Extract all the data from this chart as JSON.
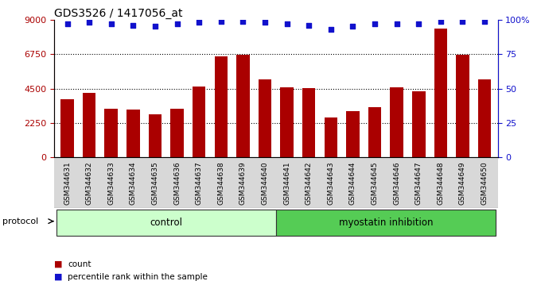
{
  "title": "GDS3526 / 1417056_at",
  "samples": [
    "GSM344631",
    "GSM344632",
    "GSM344633",
    "GSM344634",
    "GSM344635",
    "GSM344636",
    "GSM344637",
    "GSM344638",
    "GSM344639",
    "GSM344640",
    "GSM344641",
    "GSM344642",
    "GSM344643",
    "GSM344644",
    "GSM344645",
    "GSM344646",
    "GSM344647",
    "GSM344648",
    "GSM344649",
    "GSM344650"
  ],
  "counts": [
    3800,
    4200,
    3200,
    3150,
    2800,
    3200,
    4650,
    6600,
    6700,
    5100,
    4600,
    4550,
    2600,
    3000,
    3300,
    4600,
    4300,
    8400,
    6700,
    5100
  ],
  "percentiles": [
    97,
    98,
    97,
    96,
    95,
    97,
    98,
    99,
    99,
    98,
    97,
    96,
    93,
    95,
    97,
    97,
    97,
    99,
    99,
    99
  ],
  "bar_color": "#AA0000",
  "dot_color": "#1111CC",
  "ylim_left": [
    0,
    9000
  ],
  "ylim_right": [
    0,
    100
  ],
  "yticks_left": [
    0,
    2250,
    4500,
    6750,
    9000
  ],
  "yticks_right": [
    0,
    25,
    50,
    75,
    100
  ],
  "grid_lines": [
    2250,
    4500,
    6750
  ],
  "control_color": "#ccffcc",
  "myostatin_color": "#55cc55",
  "bg_color": "#d8d8d8",
  "title_fontsize": 10,
  "n_control": 10,
  "n_myostatin": 10
}
